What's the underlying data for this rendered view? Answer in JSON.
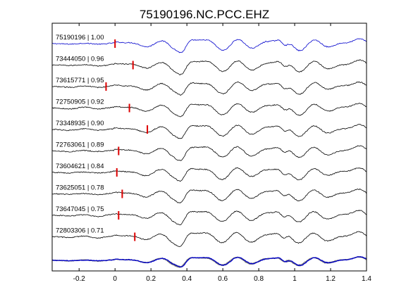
{
  "chart_data": {
    "type": "line",
    "title": "75190196.NC.PCC.EHZ",
    "xlabel": "",
    "ylabel": "",
    "xlim": [
      -0.35,
      1.4
    ],
    "xticks": [
      "-0.2",
      "0",
      "0.2",
      "0.4",
      "0.6",
      "0.8",
      "1",
      "1.2",
      "1.4"
    ],
    "xtick_values": [
      -0.2,
      0,
      0.2,
      0.4,
      0.6,
      0.8,
      1.0,
      1.2,
      1.4
    ],
    "grid": false,
    "legend": "none",
    "colors": {
      "reference": "#0000cc",
      "trace": "#000000",
      "pick": "#dd0000",
      "stack": "#777777"
    },
    "traces": [
      {
        "id": "75190196",
        "cc": "1.00",
        "label": "75190196 | 1.00",
        "pick_time": 0.0,
        "color": "#0000cc"
      },
      {
        "id": "73444050",
        "cc": "0.96",
        "label": "73444050 | 0.96",
        "pick_time": 0.1,
        "color": "#000000"
      },
      {
        "id": "73615771",
        "cc": "0.95",
        "label": "73615771 | 0.95",
        "pick_time": -0.05,
        "color": "#000000"
      },
      {
        "id": "72750905",
        "cc": "0.92",
        "label": "72750905 | 0.92",
        "pick_time": 0.08,
        "color": "#000000"
      },
      {
        "id": "73348935",
        "cc": "0.90",
        "label": "73348935 | 0.90",
        "pick_time": 0.18,
        "color": "#000000"
      },
      {
        "id": "72763061",
        "cc": "0.89",
        "label": "72763061 | 0.89",
        "pick_time": 0.02,
        "color": "#000000"
      },
      {
        "id": "73604621",
        "cc": "0.84",
        "label": "73604621 | 0.84",
        "pick_time": 0.01,
        "color": "#000000"
      },
      {
        "id": "73625051",
        "cc": "0.78",
        "label": "73625051 | 0.78",
        "pick_time": 0.04,
        "color": "#000000"
      },
      {
        "id": "73647045",
        "cc": "0.75",
        "label": "73647045 | 0.75",
        "pick_time": 0.02,
        "color": "#000000"
      },
      {
        "id": "72803306",
        "cc": "0.71",
        "label": "72803306 | 0.71",
        "pick_time": 0.11,
        "color": "#000000"
      }
    ]
  }
}
